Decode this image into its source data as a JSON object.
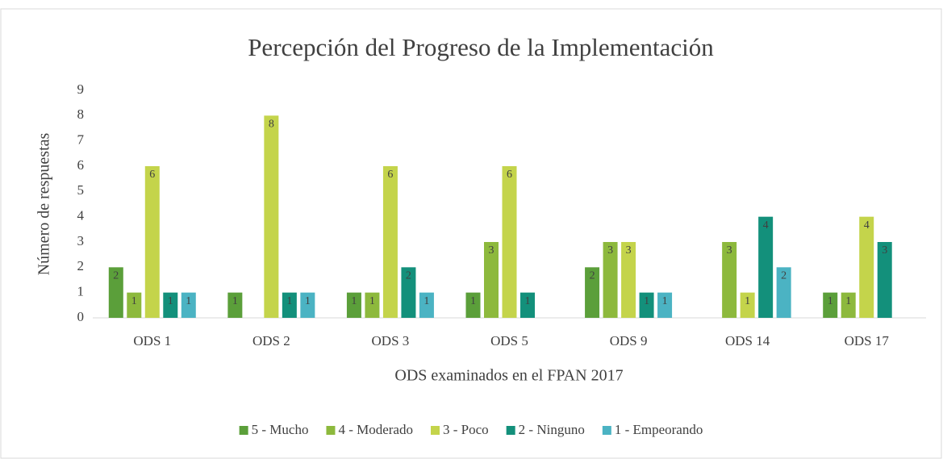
{
  "chart_data": {
    "type": "bar",
    "title": "Percepción del Progreso de la Implementación",
    "x_label": "ODS examinados en el FPAN 2017",
    "y_label": "Número de respuestas",
    "categories": [
      "ODS 1",
      "ODS 2",
      "ODS 3",
      "ODS 5",
      "ODS 9",
      "ODS 14",
      "ODS 17"
    ],
    "series": [
      {
        "name": "5 - Mucho",
        "color": "#5b9f3a",
        "values": [
          2,
          1,
          1,
          1,
          2,
          0,
          1
        ]
      },
      {
        "name": "4 - Moderado",
        "color": "#8db93d",
        "values": [
          1,
          0,
          1,
          3,
          3,
          3,
          1
        ]
      },
      {
        "name": "3 - Poco",
        "color": "#c4d44b",
        "values": [
          6,
          8,
          6,
          6,
          3,
          1,
          4
        ]
      },
      {
        "name": "2 - Ninguno",
        "color": "#13907b",
        "values": [
          1,
          1,
          2,
          1,
          1,
          4,
          3
        ]
      },
      {
        "name": "1 - Empeorando",
        "color": "#4bb3c3",
        "values": [
          1,
          1,
          1,
          0,
          1,
          2,
          0
        ]
      }
    ],
    "ylim": [
      0,
      9
    ],
    "yticks": [
      0,
      1,
      2,
      3,
      4,
      5,
      6,
      7,
      8,
      9
    ],
    "grid": false,
    "legend": "bottom"
  }
}
